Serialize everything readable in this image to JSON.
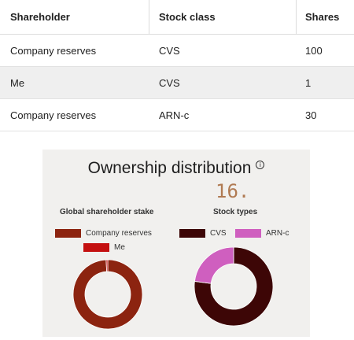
{
  "table": {
    "headers": [
      "Shareholder",
      "Stock class",
      "Shares"
    ],
    "rows": [
      [
        "Company reserves",
        "CVS",
        "100"
      ],
      [
        "Me",
        "CVS",
        "1"
      ],
      [
        "Company reserves",
        "ARN-c",
        "30"
      ]
    ]
  },
  "panel": {
    "title": "Ownership distribution",
    "info_icon": "info-circle-icon",
    "info_glyph": "i",
    "big_number": "16.",
    "left_chart": {
      "subtitle": "Global shareholder stake",
      "legend": [
        {
          "label": "Company reserves",
          "color": "#8c2410"
        },
        {
          "label": "Me",
          "color": "#c41010"
        }
      ]
    },
    "right_chart": {
      "subtitle": "Stock types",
      "legend": [
        {
          "label": "CVS",
          "color": "#3d0606"
        },
        {
          "label": "ARN-c",
          "color": "#cf5fbf"
        }
      ]
    }
  },
  "chart_data": [
    {
      "type": "pie",
      "title": "Global shareholder stake",
      "categories": [
        "Company reserves",
        "Me"
      ],
      "values": [
        130,
        1
      ],
      "colors": [
        "#8c2410",
        "#c41010"
      ]
    },
    {
      "type": "pie",
      "title": "Stock types",
      "categories": [
        "CVS",
        "ARN-c"
      ],
      "values": [
        101,
        30
      ],
      "colors": [
        "#3d0606",
        "#cf5fbf"
      ]
    }
  ]
}
